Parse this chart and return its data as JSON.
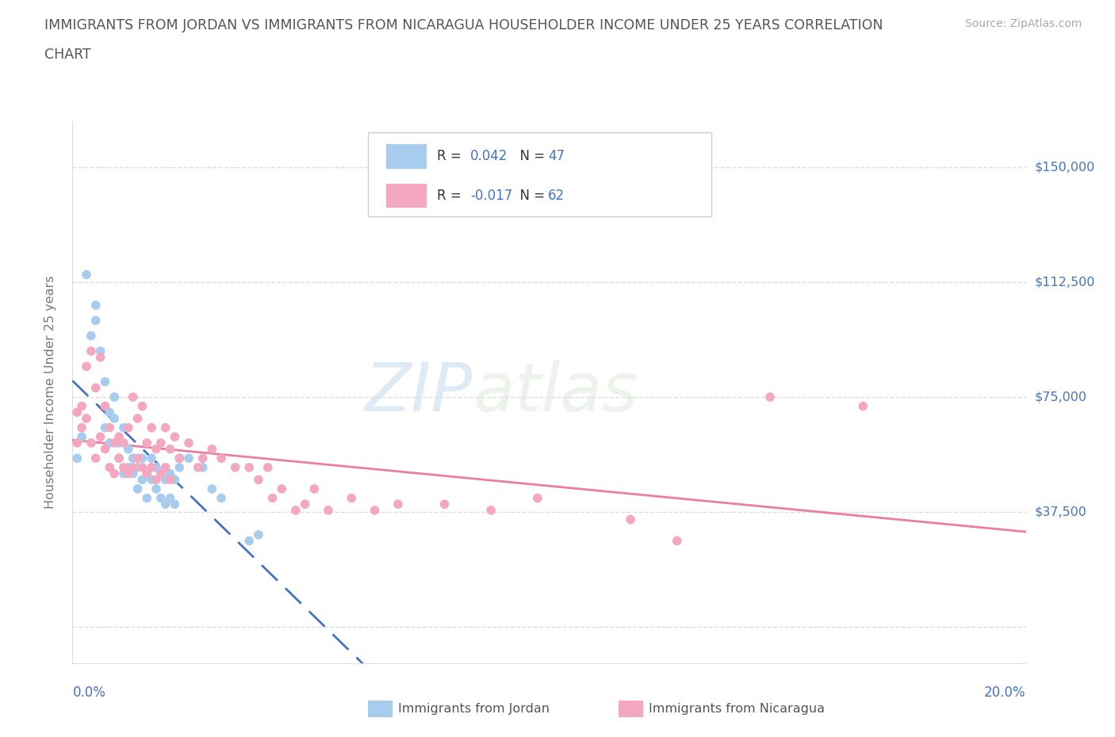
{
  "title_line1": "IMMIGRANTS FROM JORDAN VS IMMIGRANTS FROM NICARAGUA HOUSEHOLDER INCOME UNDER 25 YEARS CORRELATION",
  "title_line2": "CHART",
  "source_text": "Source: ZipAtlas.com",
  "ylabel": "Householder Income Under 25 years",
  "xlim": [
    0.0,
    0.205
  ],
  "ylim": [
    -12000,
    165000
  ],
  "ytick_vals": [
    0,
    37500,
    75000,
    112500,
    150000
  ],
  "ytick_labels": [
    "",
    "$37,500",
    "$75,000",
    "$112,500",
    "$150,000"
  ],
  "watermark_zip": "ZIP",
  "watermark_atlas": "atlas",
  "jordan_color": "#A8CCEE",
  "nicaragua_color": "#F4A8C0",
  "jordan_line_color": "#4472C4",
  "nicaragua_line_color": "#E87FA0",
  "background_color": "#FFFFFF",
  "grid_color": "#DDDDDD",
  "title_color": "#555555",
  "tick_color": "#4472C4",
  "source_color": "#AAAAAA",
  "label_color": "#777777",
  "jordan_scatter": [
    [
      0.001,
      55000
    ],
    [
      0.002,
      62000
    ],
    [
      0.003,
      115000
    ],
    [
      0.004,
      95000
    ],
    [
      0.005,
      105000
    ],
    [
      0.005,
      100000
    ],
    [
      0.006,
      90000
    ],
    [
      0.007,
      80000
    ],
    [
      0.007,
      65000
    ],
    [
      0.008,
      70000
    ],
    [
      0.008,
      60000
    ],
    [
      0.009,
      75000
    ],
    [
      0.009,
      68000
    ],
    [
      0.01,
      60000
    ],
    [
      0.01,
      55000
    ],
    [
      0.011,
      65000
    ],
    [
      0.011,
      50000
    ],
    [
      0.012,
      58000
    ],
    [
      0.012,
      52000
    ],
    [
      0.013,
      55000
    ],
    [
      0.013,
      50000
    ],
    [
      0.014,
      52000
    ],
    [
      0.014,
      45000
    ],
    [
      0.015,
      55000
    ],
    [
      0.015,
      48000
    ],
    [
      0.016,
      50000
    ],
    [
      0.016,
      42000
    ],
    [
      0.017,
      55000
    ],
    [
      0.017,
      48000
    ],
    [
      0.018,
      52000
    ],
    [
      0.018,
      45000
    ],
    [
      0.019,
      50000
    ],
    [
      0.019,
      42000
    ],
    [
      0.02,
      48000
    ],
    [
      0.02,
      40000
    ],
    [
      0.021,
      50000
    ],
    [
      0.021,
      42000
    ],
    [
      0.022,
      48000
    ],
    [
      0.022,
      40000
    ],
    [
      0.023,
      52000
    ],
    [
      0.023,
      55000
    ],
    [
      0.025,
      55000
    ],
    [
      0.028,
      52000
    ],
    [
      0.03,
      45000
    ],
    [
      0.032,
      42000
    ],
    [
      0.038,
      28000
    ],
    [
      0.04,
      30000
    ]
  ],
  "nicaragua_scatter": [
    [
      0.001,
      70000
    ],
    [
      0.001,
      60000
    ],
    [
      0.002,
      72000
    ],
    [
      0.002,
      65000
    ],
    [
      0.003,
      85000
    ],
    [
      0.003,
      68000
    ],
    [
      0.004,
      90000
    ],
    [
      0.004,
      60000
    ],
    [
      0.005,
      78000
    ],
    [
      0.005,
      55000
    ],
    [
      0.006,
      88000
    ],
    [
      0.006,
      62000
    ],
    [
      0.007,
      72000
    ],
    [
      0.007,
      58000
    ],
    [
      0.008,
      65000
    ],
    [
      0.008,
      52000
    ],
    [
      0.009,
      60000
    ],
    [
      0.009,
      50000
    ],
    [
      0.01,
      62000
    ],
    [
      0.01,
      55000
    ],
    [
      0.011,
      60000
    ],
    [
      0.011,
      52000
    ],
    [
      0.012,
      65000
    ],
    [
      0.012,
      50000
    ],
    [
      0.013,
      75000
    ],
    [
      0.013,
      52000
    ],
    [
      0.014,
      68000
    ],
    [
      0.014,
      55000
    ],
    [
      0.015,
      72000
    ],
    [
      0.015,
      52000
    ],
    [
      0.016,
      60000
    ],
    [
      0.016,
      50000
    ],
    [
      0.017,
      65000
    ],
    [
      0.017,
      52000
    ],
    [
      0.018,
      58000
    ],
    [
      0.018,
      48000
    ],
    [
      0.019,
      60000
    ],
    [
      0.019,
      50000
    ],
    [
      0.02,
      65000
    ],
    [
      0.02,
      52000
    ],
    [
      0.021,
      58000
    ],
    [
      0.021,
      48000
    ],
    [
      0.022,
      62000
    ],
    [
      0.023,
      55000
    ],
    [
      0.025,
      60000
    ],
    [
      0.027,
      52000
    ],
    [
      0.028,
      55000
    ],
    [
      0.03,
      58000
    ],
    [
      0.032,
      55000
    ],
    [
      0.035,
      52000
    ],
    [
      0.038,
      52000
    ],
    [
      0.04,
      48000
    ],
    [
      0.042,
      52000
    ],
    [
      0.043,
      42000
    ],
    [
      0.045,
      45000
    ],
    [
      0.048,
      38000
    ],
    [
      0.05,
      40000
    ],
    [
      0.052,
      45000
    ],
    [
      0.055,
      38000
    ],
    [
      0.06,
      42000
    ],
    [
      0.065,
      38000
    ],
    [
      0.07,
      40000
    ],
    [
      0.08,
      40000
    ],
    [
      0.09,
      38000
    ],
    [
      0.1,
      42000
    ],
    [
      0.12,
      35000
    ],
    [
      0.13,
      28000
    ],
    [
      0.15,
      75000
    ],
    [
      0.17,
      72000
    ]
  ]
}
